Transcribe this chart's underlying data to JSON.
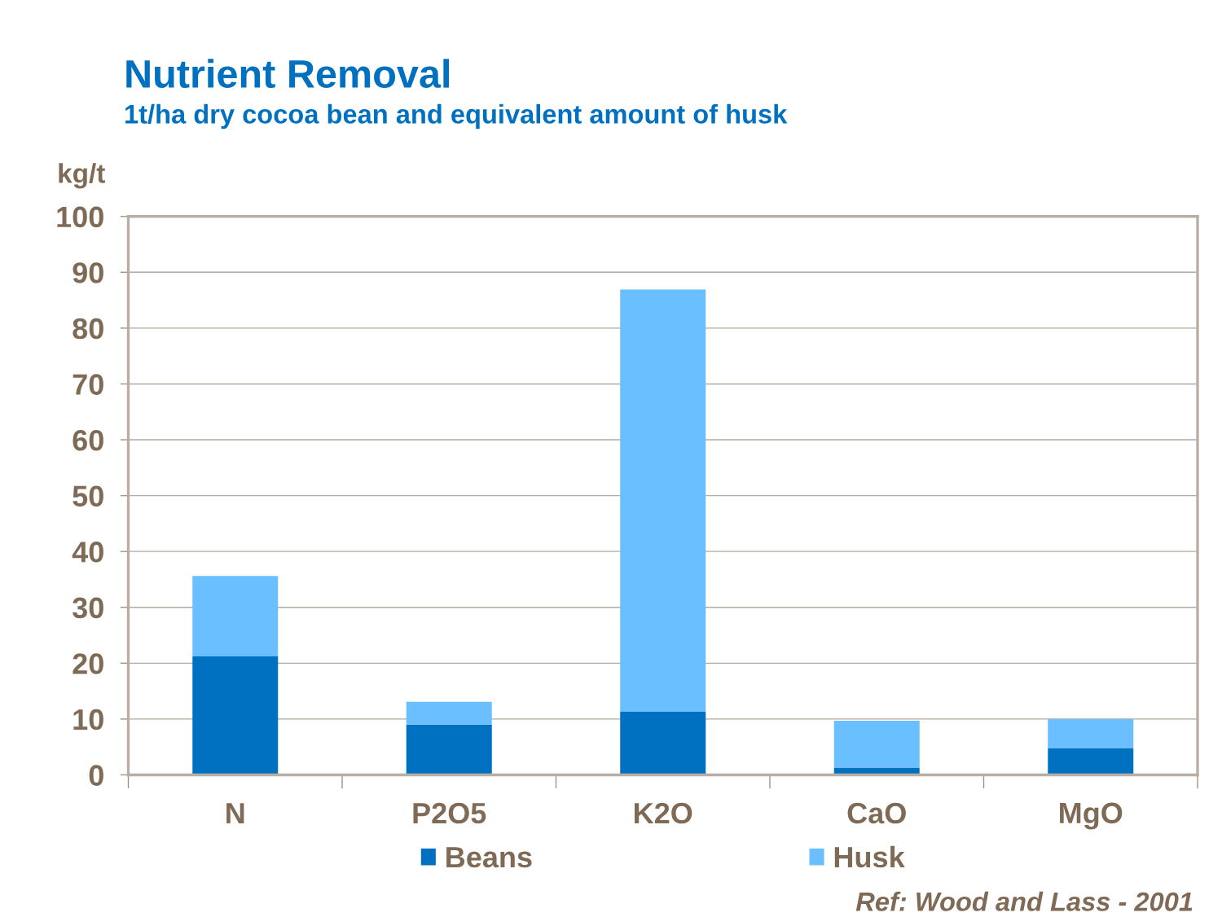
{
  "chart_data": {
    "type": "bar",
    "title": "Nutrient Removal",
    "subtitle": "1t/ha dry cocoa bean and equivalent amount of husk",
    "ylabel": "kg/t",
    "categories": [
      "N",
      "P2O5",
      "K2O",
      "CaO",
      "MgO"
    ],
    "stacked": true,
    "series": [
      {
        "name": "Beans",
        "color": "#0070c0",
        "values": [
          21.2,
          9.0,
          11.3,
          1.3,
          4.8
        ]
      },
      {
        "name": "Husk",
        "color": "#69bfff",
        "values": [
          14.4,
          4.1,
          75.6,
          8.4,
          5.2
        ]
      }
    ],
    "ylim": [
      0,
      100
    ],
    "yticks": [
      0,
      10,
      20,
      30,
      40,
      50,
      60,
      70,
      80,
      90,
      100
    ],
    "grid": "y",
    "legend": "bottom",
    "annotations": [
      "Ref: Wood and Lass - 2001"
    ]
  }
}
